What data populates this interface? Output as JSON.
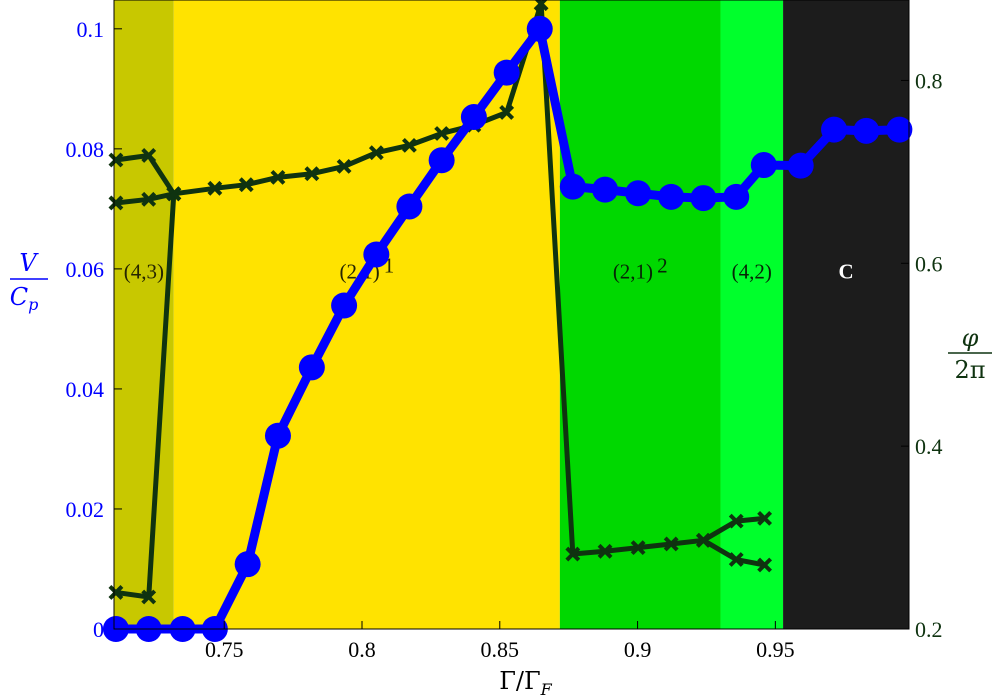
{
  "colors": {
    "velocity_series": "#0000ff",
    "phase_series": "#0f3310",
    "left_axis_text": "#0000ff",
    "right_axis_text": "#0f3310"
  },
  "chart_data": {
    "type": "line",
    "title": "",
    "xlabel": "Γ/Γ",
    "xlabel_sub": "F",
    "ylabel_left": {
      "num": "V",
      "den": "C",
      "den_sub": "p"
    },
    "ylabel_right": {
      "num": "φ",
      "den": "2π"
    },
    "xlim": [
      0.71,
      0.9985
    ],
    "ylim_left": [
      0,
      0.1048
    ],
    "ylim_right": [
      0.2,
      0.888
    ],
    "x_ticks": [
      "0.75",
      "0.8",
      "0.85",
      "0.9",
      "0.95"
    ],
    "x_tick_values": [
      0.75,
      0.8,
      0.85,
      0.9,
      0.95
    ],
    "y_left_ticks": [
      "0",
      "0.02",
      "0.04",
      "0.06",
      "0.08",
      "0.1"
    ],
    "y_left_tick_values": [
      0,
      0.02,
      0.04,
      0.06,
      0.08,
      0.1
    ],
    "y_right_ticks": [
      "0.2",
      "0.4",
      "0.6",
      "0.8"
    ],
    "y_right_tick_values": [
      0.2,
      0.4,
      0.6,
      0.8
    ],
    "grid": false,
    "regions": [
      {
        "label": "(4,3)",
        "sup": "",
        "x_start": 0.71,
        "x_end": 0.7317,
        "color": "#c8c800",
        "text_color": "#262600"
      },
      {
        "label": "(2,1)",
        "sup": "1",
        "x_start": 0.7317,
        "x_end": 0.8718,
        "color": "#ffe300",
        "text_color": "#262600"
      },
      {
        "label": "(2,1)",
        "sup": "2",
        "x_start": 0.8718,
        "x_end": 0.9301,
        "color": "#00d800",
        "text_color": "#062606"
      },
      {
        "label": "(4,2)",
        "sup": "",
        "x_start": 0.9301,
        "x_end": 0.9528,
        "color": "#00ff2c",
        "text_color": "#062606"
      },
      {
        "label": "C",
        "sup": "",
        "x_start": 0.9528,
        "x_end": 0.9985,
        "color": "#1c1c1c",
        "text_color": "#ffffff"
      }
    ],
    "region_label_y_right": 0.592,
    "velocity": {
      "x": [
        0.7107,
        0.7226,
        0.7349,
        0.7466,
        0.7585,
        0.7695,
        0.7818,
        0.7935,
        0.8052,
        0.8172,
        0.8289,
        0.8406,
        0.8525,
        0.8645,
        0.8765,
        0.8882,
        0.9002,
        0.9122,
        0.9239,
        0.9358,
        0.9458,
        0.9592,
        0.9713,
        0.983,
        0.995
      ],
      "y": [
        0,
        0,
        0,
        0,
        0.0108,
        0.0322,
        0.0436,
        0.0539,
        0.0624,
        0.0704,
        0.0781,
        0.0853,
        0.0927,
        0.1,
        0.0737,
        0.0732,
        0.0726,
        0.072,
        0.0718,
        0.072,
        0.0773,
        0.0772,
        0.0832,
        0.083,
        0.0832
      ]
    },
    "phase": {
      "upper_branch": {
        "x": [
          0.7107,
          0.7226,
          0.7317,
          0.7466,
          0.758,
          0.7695,
          0.7818,
          0.7935,
          0.8052,
          0.8172,
          0.8289,
          0.8406,
          0.8525,
          0.865,
          0.8765,
          0.8882,
          0.9002,
          0.9122,
          0.9239,
          0.9358,
          0.9461
        ],
        "y": [
          0.713,
          0.718,
          0.676,
          0.682,
          0.686,
          0.694,
          0.698,
          0.706,
          0.721,
          0.729,
          0.742,
          0.751,
          0.765,
          0.884,
          0.282,
          0.285,
          0.289,
          0.293,
          0.297,
          0.276,
          0.27
        ]
      },
      "lower_branch_left": {
        "x": [
          0.7107,
          0.7226,
          0.7317
        ],
        "y": [
          0.666,
          0.67,
          0.676
        ]
      },
      "bottom_left": {
        "x": [
          0.7107,
          0.7226,
          0.7317
        ],
        "y": [
          0.24,
          0.235,
          0.676
        ]
      },
      "upper_right_fork": {
        "x": [
          0.9239,
          0.9358,
          0.9461
        ],
        "y": [
          0.297,
          0.318,
          0.321
        ]
      }
    }
  }
}
